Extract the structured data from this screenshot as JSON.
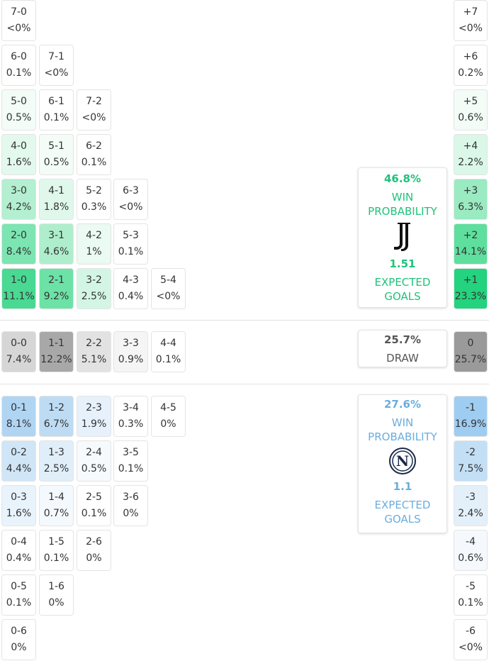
{
  "home": {
    "rows": [
      [
        {
          "score": "7-0",
          "prob": "<0%"
        }
      ],
      [
        {
          "score": "6-0",
          "prob": "0.1%"
        },
        {
          "score": "7-1",
          "prob": "<0%"
        }
      ],
      [
        {
          "score": "5-0",
          "prob": "0.5%",
          "color": "#f3fcf7"
        },
        {
          "score": "6-1",
          "prob": "0.1%"
        },
        {
          "score": "7-2",
          "prob": "<0%"
        }
      ],
      [
        {
          "score": "4-0",
          "prob": "1.6%",
          "color": "#e3f9ee"
        },
        {
          "score": "5-1",
          "prob": "0.5%",
          "color": "#f3fcf7"
        },
        {
          "score": "6-2",
          "prob": "0.1%"
        }
      ],
      [
        {
          "score": "3-0",
          "prob": "4.2%",
          "color": "#b3efd0"
        },
        {
          "score": "4-1",
          "prob": "1.8%",
          "color": "#e0f8ec"
        },
        {
          "score": "5-2",
          "prob": "0.3%"
        },
        {
          "score": "6-3",
          "prob": "<0%"
        }
      ],
      [
        {
          "score": "2-0",
          "prob": "8.4%",
          "color": "#7ce5b1"
        },
        {
          "score": "3-1",
          "prob": "4.6%",
          "color": "#aeeecd"
        },
        {
          "score": "4-2",
          "prob": "1%",
          "color": "#ebfaf2"
        },
        {
          "score": "5-3",
          "prob": "0.1%"
        }
      ],
      [
        {
          "score": "1-0",
          "prob": "11.1%",
          "color": "#49d993"
        },
        {
          "score": "2-1",
          "prob": "9.2%",
          "color": "#6ce2a6"
        },
        {
          "score": "3-2",
          "prob": "2.5%",
          "color": "#d3f6e4"
        },
        {
          "score": "4-3",
          "prob": "0.4%"
        },
        {
          "score": "5-4",
          "prob": "<0%"
        }
      ]
    ],
    "goal_diff": [
      {
        "label": "+7",
        "prob": "<0%"
      },
      {
        "label": "+6",
        "prob": "0.2%"
      },
      {
        "label": "+5",
        "prob": "0.6%",
        "color": "#f3fcf7"
      },
      {
        "label": "+4",
        "prob": "2.2%",
        "color": "#dbf7e8"
      },
      {
        "label": "+3",
        "prob": "6.3%",
        "color": "#9aeac2"
      },
      {
        "label": "+2",
        "prob": "14.1%",
        "color": "#5edf9e"
      },
      {
        "label": "+1",
        "prob": "23.3%",
        "color": "#24d37d"
      }
    ],
    "card": {
      "win_pct": "46.8%",
      "win_label": "WIN PROBABILITY",
      "xg": "1.51",
      "xg_label": "EXPECTED GOALS"
    }
  },
  "draw": {
    "row": [
      {
        "score": "0-0",
        "prob": "7.4%",
        "color": "#d6d6d6"
      },
      {
        "score": "1-1",
        "prob": "12.2%",
        "color": "#a8a8a8"
      },
      {
        "score": "2-2",
        "prob": "5.1%",
        "color": "#e2e2e2"
      },
      {
        "score": "3-3",
        "prob": "0.9%",
        "color": "#f5f5f5"
      },
      {
        "score": "4-4",
        "prob": "0.1%"
      }
    ],
    "goal_diff": {
      "label": "0",
      "prob": "25.7%",
      "color": "#9a9a9a"
    },
    "card": {
      "pct": "25.7%",
      "label": "DRAW"
    }
  },
  "away": {
    "rows": [
      [
        {
          "score": "0-1",
          "prob": "8.1%",
          "color": "#b0d5f3"
        },
        {
          "score": "1-2",
          "prob": "6.7%",
          "color": "#bddcf4"
        },
        {
          "score": "2-3",
          "prob": "1.9%",
          "color": "#e6f1fb"
        },
        {
          "score": "3-4",
          "prob": "0.3%"
        },
        {
          "score": "4-5",
          "prob": "0%"
        }
      ],
      [
        {
          "score": "0-2",
          "prob": "4.4%",
          "color": "#d0e6f7"
        },
        {
          "score": "1-3",
          "prob": "2.5%",
          "color": "#e0eefa"
        },
        {
          "score": "2-4",
          "prob": "0.5%",
          "color": "#f6fafd"
        },
        {
          "score": "3-5",
          "prob": "0.1%"
        }
      ],
      [
        {
          "score": "0-3",
          "prob": "1.6%",
          "color": "#e9f3fb"
        },
        {
          "score": "1-4",
          "prob": "0.7%",
          "color": "#f4f9fd"
        },
        {
          "score": "2-5",
          "prob": "0.1%"
        },
        {
          "score": "3-6",
          "prob": "0%"
        }
      ],
      [
        {
          "score": "0-4",
          "prob": "0.4%"
        },
        {
          "score": "1-5",
          "prob": "0.1%"
        },
        {
          "score": "2-6",
          "prob": "0%"
        }
      ],
      [
        {
          "score": "0-5",
          "prob": "0.1%"
        },
        {
          "score": "1-6",
          "prob": "0%"
        }
      ],
      [
        {
          "score": "0-6",
          "prob": "0%"
        }
      ]
    ],
    "goal_diff": [
      {
        "label": "-1",
        "prob": "16.9%",
        "color": "#9fcdf1"
      },
      {
        "label": "-2",
        "prob": "7.5%",
        "color": "#c3dff5"
      },
      {
        "label": "-3",
        "prob": "2.4%",
        "color": "#e3f0fa"
      },
      {
        "label": "-4",
        "prob": "0.6%",
        "color": "#f5f9fd"
      },
      {
        "label": "-5",
        "prob": "0.1%"
      },
      {
        "label": "-6",
        "prob": "<0%"
      }
    ],
    "card": {
      "win_pct": "27.6%",
      "win_label": "WIN PROBABILITY",
      "xg": "1.1",
      "xg_label": "EXPECTED GOALS"
    }
  }
}
